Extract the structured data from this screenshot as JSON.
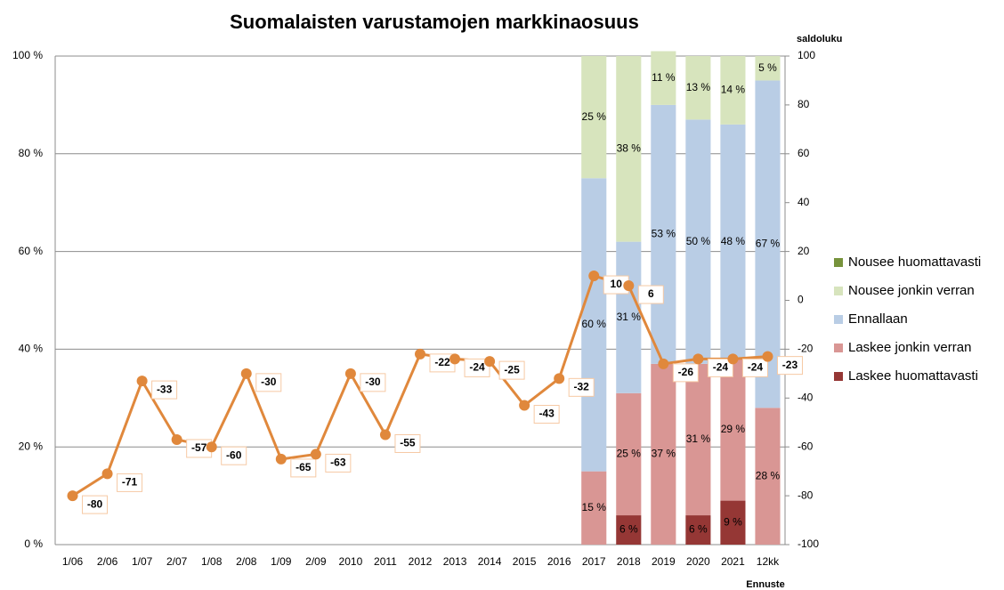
{
  "chart_data": {
    "type": "bar",
    "title": "Suomalaisten varustamojen markkinaosuus",
    "y2_label": "saldoluku",
    "x_label": "Ennuste",
    "categories": [
      "1/06",
      "2/06",
      "1/07",
      "2/07",
      "1/08",
      "2/08",
      "1/09",
      "2/09",
      "2010",
      "2011",
      "2012",
      "2013",
      "2014",
      "2015",
      "2016",
      "2017",
      "2018",
      "2019",
      "2020",
      "2021",
      "12kk"
    ],
    "ylim": [
      0,
      100
    ],
    "yticks": [
      {
        "value": 0,
        "label": "0 %"
      },
      {
        "value": 20,
        "label": "20 %"
      },
      {
        "value": 40,
        "label": "40 %"
      },
      {
        "value": 60,
        "label": "60 %"
      },
      {
        "value": 80,
        "label": "80 %"
      },
      {
        "value": 100,
        "label": "100 %"
      }
    ],
    "y2lim": [
      -100,
      100
    ],
    "y2ticks": [
      -100,
      -80,
      -60,
      -40,
      -20,
      0,
      20,
      40,
      60,
      80,
      100
    ],
    "grid": true,
    "legend": "right",
    "series": [
      {
        "name": "Laskee huomattavasti",
        "type": "bar",
        "color": "#953735",
        "values": [
          null,
          null,
          null,
          null,
          null,
          null,
          null,
          null,
          null,
          null,
          null,
          null,
          null,
          null,
          null,
          null,
          6,
          null,
          6,
          9,
          null
        ],
        "value_labels": [
          null,
          null,
          null,
          null,
          null,
          null,
          null,
          null,
          null,
          null,
          null,
          null,
          null,
          null,
          null,
          null,
          "6 %",
          null,
          "6 %",
          "9 %",
          null
        ]
      },
      {
        "name": "Laskee jonkin verran",
        "type": "bar",
        "color": "#d99694",
        "values": [
          null,
          null,
          null,
          null,
          null,
          null,
          null,
          null,
          null,
          null,
          null,
          null,
          null,
          null,
          null,
          15,
          25,
          37,
          31,
          29,
          28
        ],
        "value_labels": [
          null,
          null,
          null,
          null,
          null,
          null,
          null,
          null,
          null,
          null,
          null,
          null,
          null,
          null,
          null,
          "15 %",
          "25 %",
          "37 %",
          "31 %",
          "29 %",
          "28 %"
        ]
      },
      {
        "name": "Ennallaan",
        "type": "bar",
        "color": "#b9cde5",
        "values": [
          null,
          null,
          null,
          null,
          null,
          null,
          null,
          null,
          null,
          null,
          null,
          null,
          null,
          null,
          null,
          60,
          31,
          53,
          50,
          48,
          67
        ],
        "value_labels": [
          null,
          null,
          null,
          null,
          null,
          null,
          null,
          null,
          null,
          null,
          null,
          null,
          null,
          null,
          null,
          "60 %",
          "31 %",
          "53 %",
          "50 %",
          "48 %",
          "67 %"
        ]
      },
      {
        "name": "Nousee jonkin verran",
        "type": "bar",
        "color": "#d7e4bd",
        "values": [
          null,
          null,
          null,
          null,
          null,
          null,
          null,
          null,
          null,
          null,
          null,
          null,
          null,
          null,
          null,
          25,
          38,
          11,
          13,
          14,
          5
        ],
        "value_labels": [
          null,
          null,
          null,
          null,
          null,
          null,
          null,
          null,
          null,
          null,
          null,
          null,
          null,
          null,
          null,
          "25 %",
          "38 %",
          "11 %",
          "13 %",
          "14 %",
          "5 %"
        ]
      },
      {
        "name": "Nousee huomattavasti",
        "type": "bar",
        "color": "#77933c",
        "values": [
          null,
          null,
          null,
          null,
          null,
          null,
          null,
          null,
          null,
          null,
          null,
          null,
          null,
          null,
          null,
          null,
          null,
          null,
          null,
          null,
          null
        ]
      },
      {
        "type": "line",
        "axis": "y2",
        "color": "#e0883c",
        "values": [
          -80,
          -71,
          -33,
          -57,
          -60,
          -30,
          -65,
          -63,
          -30,
          -55,
          -22,
          -24,
          -25,
          -43,
          -32,
          10,
          6,
          -26,
          -24,
          -24,
          -23
        ]
      }
    ]
  }
}
